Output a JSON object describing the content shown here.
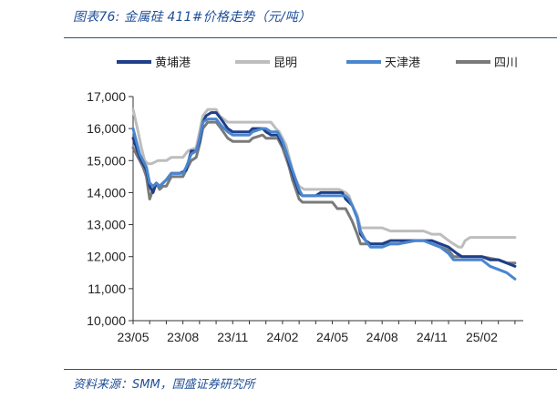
{
  "header": {
    "title": "图表76:  金属硅 411#价格走势（元/吨）"
  },
  "footer": {
    "source": "资料来源：SMM，国盛证券研究所"
  },
  "chart_data": {
    "type": "line",
    "title": "图表76:  金属硅 411#价格走势（元/吨）",
    "xlabel": "",
    "ylabel": "",
    "ylim": [
      10000,
      17000
    ],
    "yticks": [
      10000,
      11000,
      12000,
      13000,
      14000,
      15000,
      16000,
      17000
    ],
    "ytick_labels": [
      "10,000",
      "11,000",
      "12,000",
      "13,000",
      "14,000",
      "15,000",
      "16,000",
      "17,000"
    ],
    "xlim": [
      0,
      23.5
    ],
    "xticks": [
      0,
      3,
      6,
      9,
      12,
      15,
      18,
      21
    ],
    "xtick_labels": [
      "23/05",
      "23/08",
      "23/11",
      "24/02",
      "24/05",
      "24/08",
      "24/11",
      "25/02"
    ],
    "x_unit": "months since 2023-05",
    "grid": false,
    "legend_position": "top",
    "series": [
      {
        "name": "黄埔港",
        "color": "#1f3f8a",
        "points": [
          [
            0,
            15700
          ],
          [
            0.2,
            15400
          ],
          [
            0.4,
            15100
          ],
          [
            0.6,
            14900
          ],
          [
            0.8,
            14700
          ],
          [
            1.0,
            14200
          ],
          [
            1.2,
            14000
          ],
          [
            1.4,
            14300
          ],
          [
            1.6,
            14200
          ],
          [
            1.8,
            14300
          ],
          [
            2.0,
            14400
          ],
          [
            2.3,
            14600
          ],
          [
            2.8,
            14600
          ],
          [
            3.2,
            14700
          ],
          [
            3.5,
            15300
          ],
          [
            3.8,
            15300
          ],
          [
            4.0,
            15600
          ],
          [
            4.2,
            16200
          ],
          [
            4.4,
            16400
          ],
          [
            4.7,
            16500
          ],
          [
            5.0,
            16500
          ],
          [
            5.3,
            16300
          ],
          [
            5.7,
            16000
          ],
          [
            6.0,
            15900
          ],
          [
            7.0,
            15900
          ],
          [
            7.2,
            16000
          ],
          [
            7.8,
            16000
          ],
          [
            8.0,
            15900
          ],
          [
            8.3,
            15800
          ],
          [
            8.7,
            15800
          ],
          [
            9.0,
            15500
          ],
          [
            9.2,
            15300
          ],
          [
            9.4,
            14900
          ],
          [
            9.6,
            14600
          ],
          [
            9.8,
            14300
          ],
          [
            10.0,
            14000
          ],
          [
            10.2,
            13900
          ],
          [
            11.0,
            13900
          ],
          [
            11.3,
            14000
          ],
          [
            12.6,
            14000
          ],
          [
            12.8,
            13800
          ],
          [
            13.0,
            13700
          ],
          [
            13.2,
            13600
          ],
          [
            13.5,
            13200
          ],
          [
            13.7,
            12700
          ],
          [
            14.0,
            12500
          ],
          [
            14.3,
            12400
          ],
          [
            15.0,
            12400
          ],
          [
            15.5,
            12500
          ],
          [
            16.0,
            12500
          ],
          [
            17.0,
            12500
          ],
          [
            17.5,
            12500
          ],
          [
            18.0,
            12500
          ],
          [
            18.5,
            12400
          ],
          [
            19.0,
            12300
          ],
          [
            19.5,
            12100
          ],
          [
            19.8,
            12000
          ],
          [
            21.0,
            12000
          ],
          [
            21.5,
            11900
          ],
          [
            22.0,
            11900
          ],
          [
            22.5,
            11800
          ],
          [
            23.0,
            11700
          ]
        ]
      },
      {
        "name": "昆明",
        "color": "#bdbdbd",
        "points": [
          [
            0,
            16600
          ],
          [
            0.3,
            15900
          ],
          [
            0.5,
            15400
          ],
          [
            0.7,
            15000
          ],
          [
            0.9,
            14900
          ],
          [
            1.1,
            14900
          ],
          [
            1.5,
            15000
          ],
          [
            2.0,
            15000
          ],
          [
            2.3,
            15100
          ],
          [
            3.0,
            15100
          ],
          [
            3.3,
            15300
          ],
          [
            3.8,
            15400
          ],
          [
            4.0,
            15900
          ],
          [
            4.2,
            16400
          ],
          [
            4.5,
            16600
          ],
          [
            5.0,
            16600
          ],
          [
            5.2,
            16400
          ],
          [
            5.7,
            16200
          ],
          [
            7.0,
            16200
          ],
          [
            8.3,
            16200
          ],
          [
            8.6,
            16000
          ],
          [
            8.8,
            15900
          ],
          [
            9.0,
            15700
          ],
          [
            9.2,
            15500
          ],
          [
            9.4,
            15100
          ],
          [
            9.6,
            14700
          ],
          [
            9.8,
            14400
          ],
          [
            10.0,
            14200
          ],
          [
            10.3,
            14100
          ],
          [
            11.5,
            14100
          ],
          [
            11.8,
            14100
          ],
          [
            12.0,
            14100
          ],
          [
            12.4,
            14100
          ],
          [
            12.8,
            14000
          ],
          [
            13.0,
            13900
          ],
          [
            13.2,
            13600
          ],
          [
            13.5,
            13300
          ],
          [
            13.7,
            12900
          ],
          [
            14.0,
            12900
          ],
          [
            14.5,
            12900
          ],
          [
            15.0,
            12900
          ],
          [
            15.5,
            12800
          ],
          [
            16.0,
            12800
          ],
          [
            17.0,
            12800
          ],
          [
            17.5,
            12800
          ],
          [
            18.0,
            12700
          ],
          [
            18.5,
            12700
          ],
          [
            19.0,
            12500
          ],
          [
            19.3,
            12400
          ],
          [
            19.6,
            12300
          ],
          [
            19.8,
            12300
          ],
          [
            20.0,
            12500
          ],
          [
            20.3,
            12600
          ],
          [
            23.0,
            12600
          ]
        ]
      },
      {
        "name": "天津港",
        "color": "#4a86cf",
        "points": [
          [
            0,
            16000
          ],
          [
            0.2,
            15600
          ],
          [
            0.4,
            15200
          ],
          [
            0.6,
            15000
          ],
          [
            0.8,
            14800
          ],
          [
            1.0,
            14300
          ],
          [
            1.2,
            14200
          ],
          [
            1.4,
            14300
          ],
          [
            1.6,
            14200
          ],
          [
            1.8,
            14300
          ],
          [
            2.0,
            14400
          ],
          [
            2.3,
            14600
          ],
          [
            3.0,
            14600
          ],
          [
            3.2,
            14800
          ],
          [
            3.5,
            15200
          ],
          [
            3.8,
            15300
          ],
          [
            4.0,
            15700
          ],
          [
            4.2,
            16200
          ],
          [
            4.5,
            16300
          ],
          [
            5.0,
            16300
          ],
          [
            5.3,
            16100
          ],
          [
            5.7,
            15900
          ],
          [
            6.0,
            15800
          ],
          [
            7.0,
            15800
          ],
          [
            7.2,
            15900
          ],
          [
            7.8,
            16000
          ],
          [
            8.0,
            16000
          ],
          [
            8.3,
            15900
          ],
          [
            8.7,
            15900
          ],
          [
            9.0,
            15600
          ],
          [
            9.2,
            15300
          ],
          [
            9.4,
            15000
          ],
          [
            9.6,
            14700
          ],
          [
            9.8,
            14400
          ],
          [
            10.0,
            14100
          ],
          [
            10.2,
            13900
          ],
          [
            11.0,
            13900
          ],
          [
            11.3,
            13900
          ],
          [
            12.8,
            13900
          ],
          [
            13.0,
            13800
          ],
          [
            13.2,
            13600
          ],
          [
            13.5,
            13200
          ],
          [
            13.7,
            12800
          ],
          [
            14.0,
            12500
          ],
          [
            14.3,
            12300
          ],
          [
            15.0,
            12300
          ],
          [
            15.5,
            12400
          ],
          [
            16.0,
            12400
          ],
          [
            17.0,
            12500
          ],
          [
            17.5,
            12500
          ],
          [
            18.0,
            12400
          ],
          [
            18.5,
            12300
          ],
          [
            19.0,
            12100
          ],
          [
            19.3,
            11900
          ],
          [
            20.0,
            11900
          ],
          [
            21.0,
            11900
          ],
          [
            21.5,
            11700
          ],
          [
            22.0,
            11600
          ],
          [
            22.5,
            11500
          ],
          [
            23.0,
            11300
          ]
        ]
      },
      {
        "name": "四川",
        "color": "#7a7a7a",
        "points": [
          [
            0,
            15400
          ],
          [
            0.2,
            15200
          ],
          [
            0.4,
            15000
          ],
          [
            0.6,
            14800
          ],
          [
            0.8,
            14500
          ],
          [
            1.0,
            13800
          ],
          [
            1.2,
            14100
          ],
          [
            1.4,
            14300
          ],
          [
            1.6,
            14100
          ],
          [
            1.8,
            14200
          ],
          [
            2.0,
            14200
          ],
          [
            2.3,
            14500
          ],
          [
            3.0,
            14500
          ],
          [
            3.2,
            14700
          ],
          [
            3.5,
            15000
          ],
          [
            3.8,
            15100
          ],
          [
            4.0,
            15500
          ],
          [
            4.2,
            16000
          ],
          [
            4.5,
            16200
          ],
          [
            5.0,
            16200
          ],
          [
            5.3,
            16000
          ],
          [
            5.7,
            15700
          ],
          [
            6.0,
            15600
          ],
          [
            7.0,
            15600
          ],
          [
            7.2,
            15700
          ],
          [
            7.8,
            15800
          ],
          [
            8.0,
            15700
          ],
          [
            8.3,
            15700
          ],
          [
            8.7,
            15700
          ],
          [
            9.0,
            15400
          ],
          [
            9.2,
            15100
          ],
          [
            9.4,
            14800
          ],
          [
            9.6,
            14400
          ],
          [
            9.8,
            14100
          ],
          [
            10.0,
            13800
          ],
          [
            10.2,
            13700
          ],
          [
            11.0,
            13700
          ],
          [
            11.3,
            13700
          ],
          [
            12.0,
            13700
          ],
          [
            12.3,
            13500
          ],
          [
            12.8,
            13500
          ],
          [
            13.0,
            13300
          ],
          [
            13.2,
            13100
          ],
          [
            13.5,
            12700
          ],
          [
            13.7,
            12400
          ],
          [
            14.0,
            12400
          ],
          [
            15.0,
            12400
          ],
          [
            15.5,
            12400
          ],
          [
            16.0,
            12400
          ],
          [
            17.0,
            12500
          ],
          [
            17.5,
            12500
          ],
          [
            18.0,
            12400
          ],
          [
            18.5,
            12300
          ],
          [
            19.0,
            12200
          ],
          [
            19.3,
            12000
          ],
          [
            20.0,
            12000
          ],
          [
            21.0,
            12000
          ],
          [
            22.0,
            11900
          ],
          [
            22.5,
            11800
          ],
          [
            23.0,
            11800
          ]
        ]
      }
    ]
  }
}
